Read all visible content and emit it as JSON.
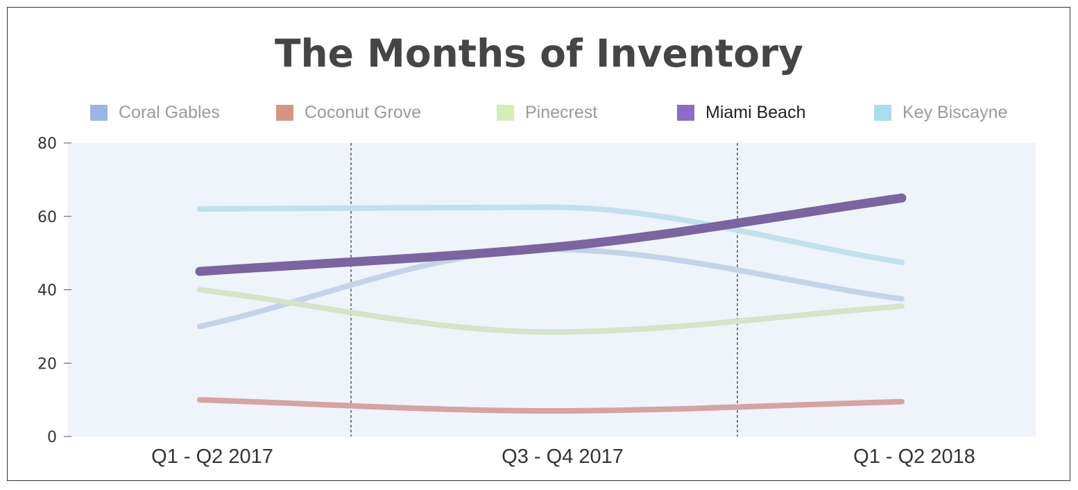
{
  "chart_data": {
    "type": "line",
    "title": "The Months of Inventory",
    "categories": [
      "Q1 - Q2 2017",
      "Q3 - Q4 2017",
      "Q1 - Q2 2018"
    ],
    "ylim": [
      0,
      80
    ],
    "yticks": [
      0,
      20,
      40,
      60,
      80
    ],
    "xlabel": "",
    "ylabel": "",
    "legend_position": "top",
    "plot_background": "#eef4fa",
    "highlighted_series": "Miami Beach",
    "series": [
      {
        "name": "Coral Gables",
        "values": [
          30,
          51,
          37.5
        ],
        "legend_color": "#9bb6e3",
        "line_color": "#c4d3e8"
      },
      {
        "name": "Coconut Grove",
        "values": [
          10,
          7,
          9.5
        ],
        "legend_color": "#d79486",
        "line_color": "#d4a3a3"
      },
      {
        "name": "Pinecrest",
        "values": [
          40,
          28.5,
          35.5
        ],
        "legend_color": "#d4eeb9",
        "line_color": "#d4e3c9"
      },
      {
        "name": "Miami Beach",
        "values": [
          45,
          51.5,
          65
        ],
        "legend_color": "#8a6ccb",
        "line_color": "#7b64a0"
      },
      {
        "name": "Key Biscayne",
        "values": [
          62,
          62.5,
          47.5
        ],
        "legend_color": "#abdced",
        "line_color": "#c2dfec"
      }
    ]
  }
}
